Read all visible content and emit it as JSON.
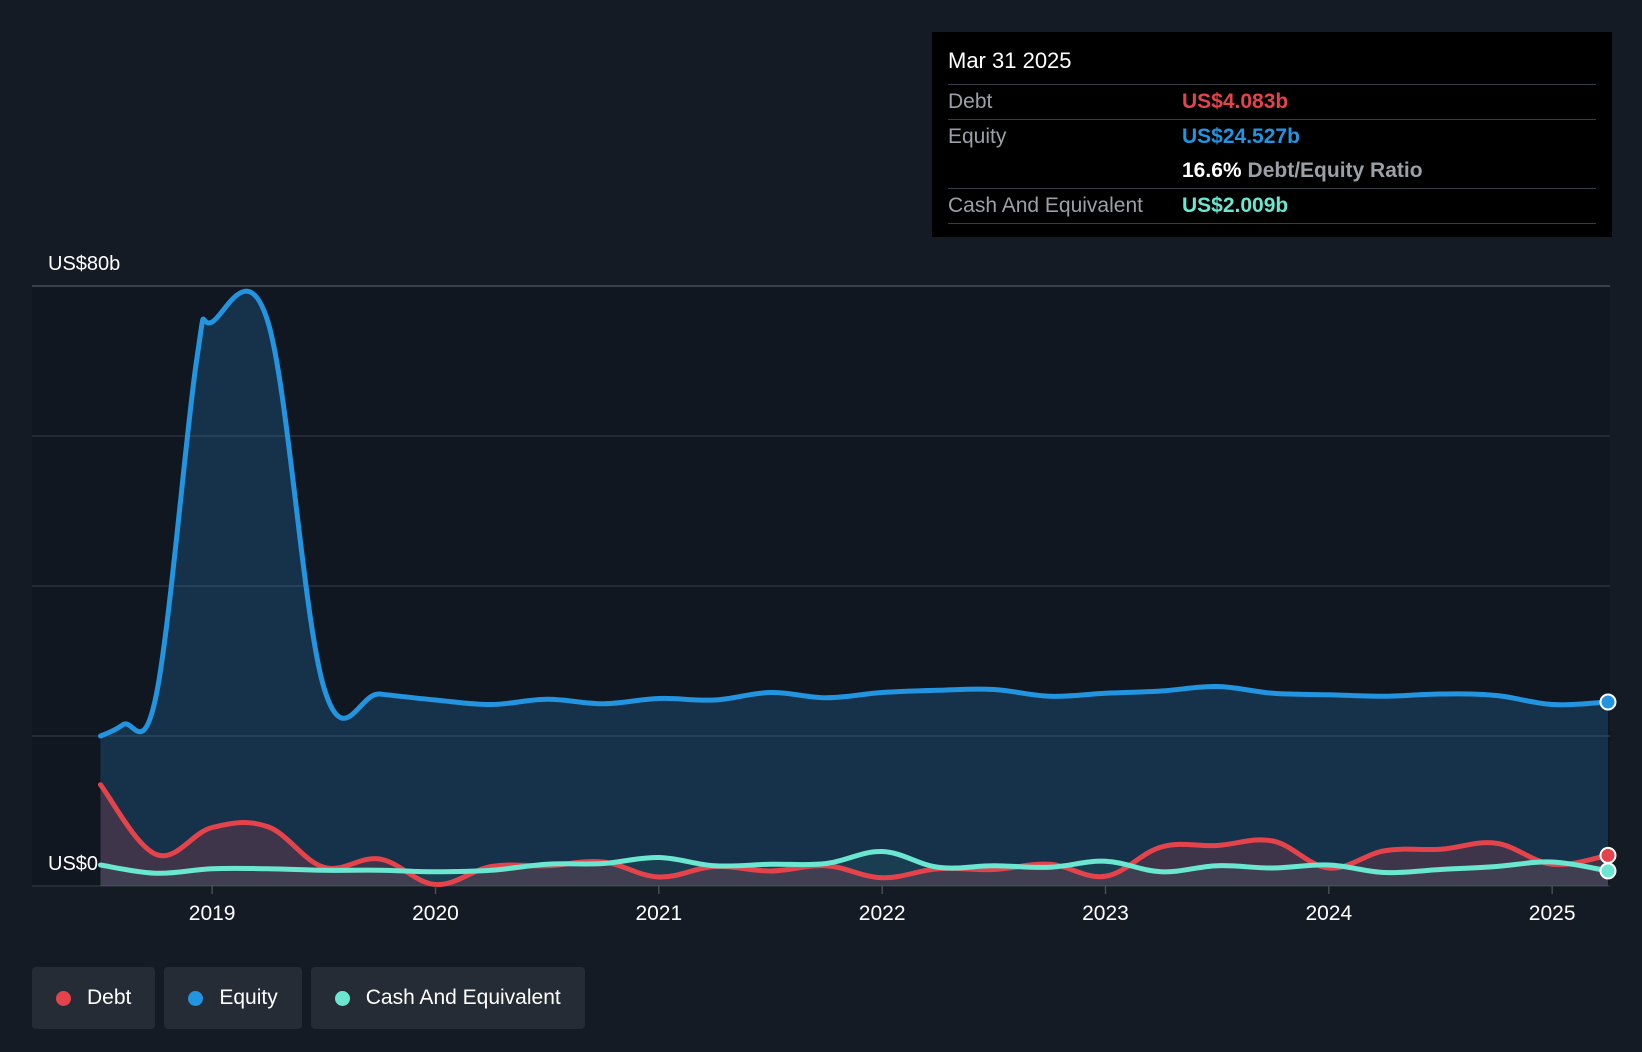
{
  "tooltip": {
    "date": "Mar 31 2025",
    "debt_label": "Debt",
    "debt_value": "US$4.083b",
    "equity_label": "Equity",
    "equity_value": "US$24.527b",
    "ratio_value": "16.6%",
    "ratio_label": "Debt/Equity Ratio",
    "cash_label": "Cash And Equivalent",
    "cash_value": "US$2.009b"
  },
  "legend": [
    {
      "label": "Debt",
      "color": "#e4434b"
    },
    {
      "label": "Equity",
      "color": "#2394e0"
    },
    {
      "label": "Cash And Equivalent",
      "color": "#6be6d0"
    }
  ],
  "chart_data": {
    "type": "area",
    "y_top_label": "US$80b",
    "y_bottom_label": "US$0",
    "ylim": [
      0,
      80
    ],
    "xlim": [
      2018.48,
      2025.25
    ],
    "x_ticks": [
      {
        "value": 2019,
        "label": "2019"
      },
      {
        "value": 2020,
        "label": "2020"
      },
      {
        "value": 2021,
        "label": "2021"
      },
      {
        "value": 2022,
        "label": "2022"
      },
      {
        "value": 2023,
        "label": "2023"
      },
      {
        "value": 2024,
        "label": "2024"
      },
      {
        "value": 2025,
        "label": "2025"
      }
    ],
    "gridlines": [
      0,
      20,
      40,
      60,
      80
    ],
    "series": [
      {
        "name": "Equity",
        "color": "#2394e0",
        "fill": "rgba(35,148,224,0.22)",
        "points": [
          [
            2018.5,
            20.0
          ],
          [
            2018.6,
            21.5
          ],
          [
            2018.75,
            25.5
          ],
          [
            2018.93,
            70.0
          ],
          [
            2019.0,
            75.2
          ],
          [
            2019.25,
            75.2
          ],
          [
            2019.5,
            26.5
          ],
          [
            2019.75,
            25.6
          ],
          [
            2020.0,
            24.8
          ],
          [
            2020.25,
            24.2
          ],
          [
            2020.5,
            24.9
          ],
          [
            2020.75,
            24.3
          ],
          [
            2021.0,
            25.0
          ],
          [
            2021.25,
            24.8
          ],
          [
            2021.5,
            25.8
          ],
          [
            2021.75,
            25.1
          ],
          [
            2022.0,
            25.8
          ],
          [
            2022.25,
            26.1
          ],
          [
            2022.5,
            26.2
          ],
          [
            2022.75,
            25.3
          ],
          [
            2023.0,
            25.7
          ],
          [
            2023.25,
            26.0
          ],
          [
            2023.5,
            26.6
          ],
          [
            2023.75,
            25.7
          ],
          [
            2024.0,
            25.5
          ],
          [
            2024.25,
            25.3
          ],
          [
            2024.5,
            25.6
          ],
          [
            2024.75,
            25.4
          ],
          [
            2025.0,
            24.2
          ],
          [
            2025.25,
            24.527
          ]
        ]
      },
      {
        "name": "Debt",
        "color": "#e4434b",
        "fill": "rgba(228,67,75,0.20)",
        "points": [
          [
            2018.5,
            13.5
          ],
          [
            2018.75,
            4.2
          ],
          [
            2019.0,
            7.8
          ],
          [
            2019.25,
            7.9
          ],
          [
            2019.5,
            2.5
          ],
          [
            2019.75,
            3.6
          ],
          [
            2020.0,
            0.2
          ],
          [
            2020.25,
            2.6
          ],
          [
            2020.5,
            2.7
          ],
          [
            2020.75,
            3.2
          ],
          [
            2021.0,
            1.2
          ],
          [
            2021.25,
            2.6
          ],
          [
            2021.5,
            2.0
          ],
          [
            2021.75,
            2.7
          ],
          [
            2022.0,
            1.1
          ],
          [
            2022.25,
            2.3
          ],
          [
            2022.5,
            2.2
          ],
          [
            2022.75,
            2.9
          ],
          [
            2023.0,
            1.3
          ],
          [
            2023.25,
            5.2
          ],
          [
            2023.5,
            5.4
          ],
          [
            2023.75,
            6.0
          ],
          [
            2024.0,
            2.4
          ],
          [
            2024.25,
            4.7
          ],
          [
            2024.5,
            4.9
          ],
          [
            2024.75,
            5.7
          ],
          [
            2025.0,
            2.9
          ],
          [
            2025.25,
            4.083
          ]
        ]
      },
      {
        "name": "Cash And Equivalent",
        "color": "#6be6d0",
        "fill": "rgba(107,230,208,0.06)",
        "points": [
          [
            2018.5,
            2.8
          ],
          [
            2018.75,
            1.7
          ],
          [
            2019.0,
            2.3
          ],
          [
            2019.25,
            2.3
          ],
          [
            2019.5,
            2.1
          ],
          [
            2019.75,
            2.1
          ],
          [
            2020.0,
            1.9
          ],
          [
            2020.25,
            2.1
          ],
          [
            2020.5,
            2.9
          ],
          [
            2020.75,
            3.0
          ],
          [
            2021.0,
            3.8
          ],
          [
            2021.25,
            2.7
          ],
          [
            2021.5,
            2.9
          ],
          [
            2021.75,
            3.0
          ],
          [
            2022.0,
            4.6
          ],
          [
            2022.25,
            2.5
          ],
          [
            2022.5,
            2.7
          ],
          [
            2022.75,
            2.5
          ],
          [
            2023.0,
            3.3
          ],
          [
            2023.25,
            1.9
          ],
          [
            2023.5,
            2.7
          ],
          [
            2023.75,
            2.4
          ],
          [
            2024.0,
            2.8
          ],
          [
            2024.25,
            1.8
          ],
          [
            2024.5,
            2.2
          ],
          [
            2024.75,
            2.6
          ],
          [
            2025.0,
            3.2
          ],
          [
            2025.25,
            2.009
          ]
        ]
      }
    ]
  }
}
